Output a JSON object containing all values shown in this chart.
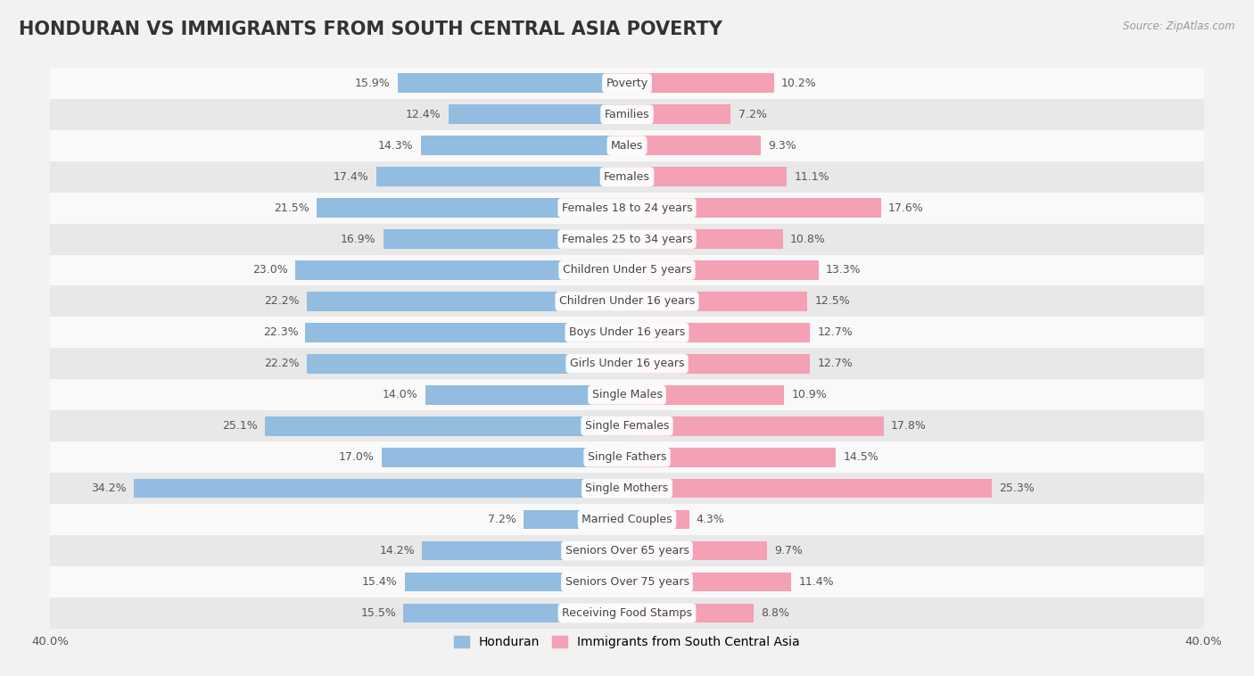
{
  "title": "HONDURAN VS IMMIGRANTS FROM SOUTH CENTRAL ASIA POVERTY",
  "source": "Source: ZipAtlas.com",
  "categories": [
    "Poverty",
    "Families",
    "Males",
    "Females",
    "Females 18 to 24 years",
    "Females 25 to 34 years",
    "Children Under 5 years",
    "Children Under 16 years",
    "Boys Under 16 years",
    "Girls Under 16 years",
    "Single Males",
    "Single Females",
    "Single Fathers",
    "Single Mothers",
    "Married Couples",
    "Seniors Over 65 years",
    "Seniors Over 75 years",
    "Receiving Food Stamps"
  ],
  "honduran_values": [
    15.9,
    12.4,
    14.3,
    17.4,
    21.5,
    16.9,
    23.0,
    22.2,
    22.3,
    22.2,
    14.0,
    25.1,
    17.0,
    34.2,
    7.2,
    14.2,
    15.4,
    15.5
  ],
  "immigrant_values": [
    10.2,
    7.2,
    9.3,
    11.1,
    17.6,
    10.8,
    13.3,
    12.5,
    12.7,
    12.7,
    10.9,
    17.8,
    14.5,
    25.3,
    4.3,
    9.7,
    11.4,
    8.8
  ],
  "honduran_color": "#92bde0",
  "immigrant_color": "#f4a0b5",
  "honduran_label": "Honduran",
  "immigrant_label": "Immigrants from South Central Asia",
  "axis_limit": 40.0,
  "bg_color": "#f2f2f2",
  "row_color_even": "#f9f9f9",
  "row_color_odd": "#e8e8e8",
  "bar_height": 0.62,
  "title_fontsize": 15,
  "label_fontsize": 9,
  "value_fontsize": 9,
  "legend_fontsize": 10
}
